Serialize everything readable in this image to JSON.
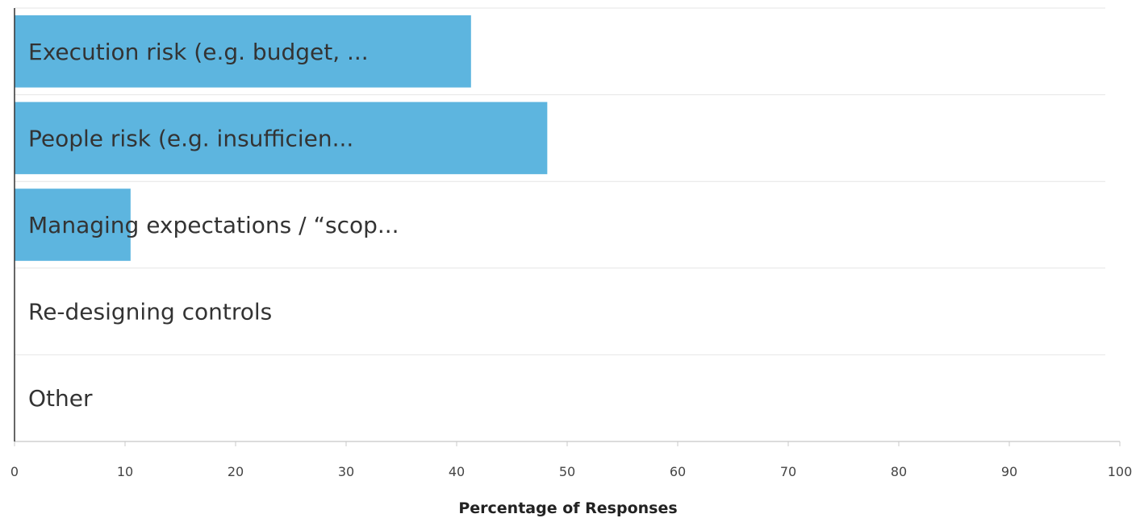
{
  "chart_data": {
    "type": "bar",
    "orientation": "horizontal",
    "categories": [
      "Execution risk (e.g. budget, ...",
      "People risk (e.g. insufficien...",
      "Managing expectations / “scop...",
      "Re-designing controls",
      "Other"
    ],
    "values": [
      41.3,
      48.2,
      10.5,
      0,
      0
    ],
    "xlabel": "Percentage of Responses",
    "ylabel": "",
    "xlim": [
      0,
      100
    ],
    "xticks": [
      "0",
      "10",
      "20",
      "30",
      "40",
      "50",
      "60",
      "70",
      "80",
      "90",
      "100"
    ],
    "grid": "horizontal separators between bars",
    "legend": "none",
    "colors": {
      "bar": "#5db5df",
      "grid": "#e6e6e6",
      "axis": "#333333"
    }
  }
}
